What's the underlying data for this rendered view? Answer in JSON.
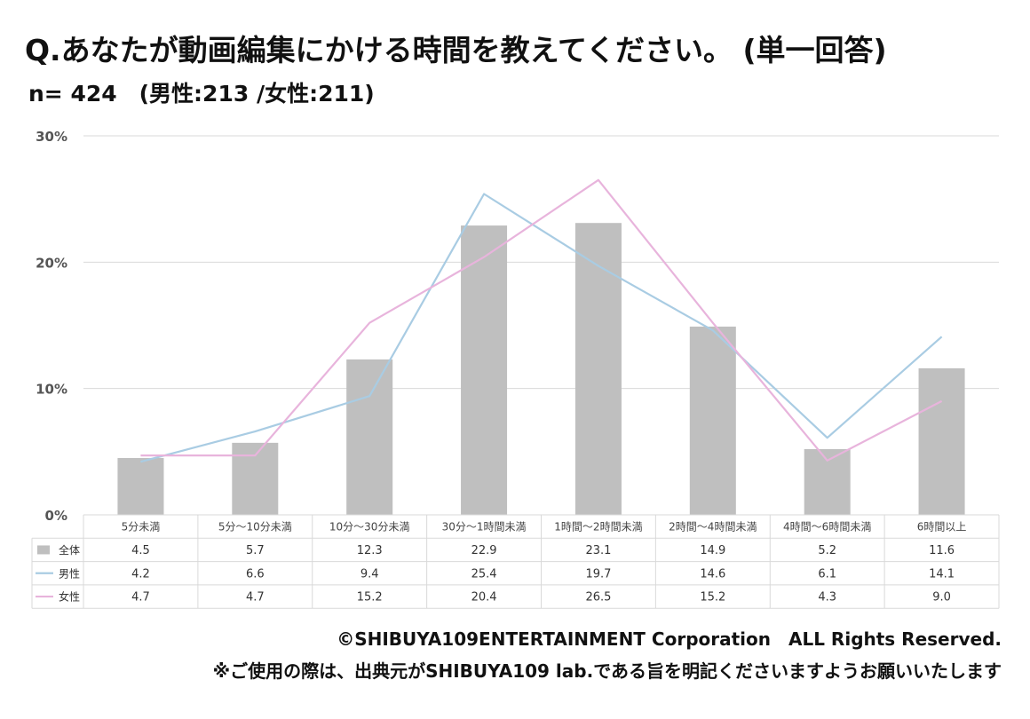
{
  "title": "Q.あなたが動画編集にかける時間を教えてください。 (単一回答)",
  "subtitle": "n= 424　(男性:213 /女性:211)",
  "footer": {
    "copyright": "©SHIBUYA109ENTERTAINMENT Corporation　ALL Rights Reserved.",
    "note": "※ご使用の際は、出典元がSHIBUYA109 lab.である旨を明記くださいますようお願いいたします"
  },
  "chart_data": {
    "type": "bar",
    "categories": [
      "5分未満",
      "5分〜10分未満",
      "10分〜30分未満",
      "30分〜1時間未満",
      "1時間〜2時間未満",
      "2時間〜4時間未満",
      "4時間〜6時間未満",
      "6時間以上"
    ],
    "series": [
      {
        "name": "全体",
        "type": "bar",
        "color": "#bfbfbf",
        "values": [
          4.5,
          5.7,
          12.3,
          22.9,
          23.1,
          14.9,
          5.2,
          11.6
        ]
      },
      {
        "name": "男性",
        "type": "line",
        "color": "#a9cce3",
        "values": [
          4.2,
          6.6,
          9.4,
          25.4,
          19.7,
          14.6,
          6.1,
          14.1
        ]
      },
      {
        "name": "女性",
        "type": "line",
        "color": "#e8b4dc",
        "values": [
          4.7,
          4.7,
          15.2,
          20.4,
          26.5,
          15.2,
          4.3,
          9.0
        ]
      }
    ],
    "yticks": [
      "0%",
      "10%",
      "20%",
      "30%"
    ],
    "ylim": [
      0,
      30
    ],
    "grid": true,
    "legend": "data-table"
  }
}
